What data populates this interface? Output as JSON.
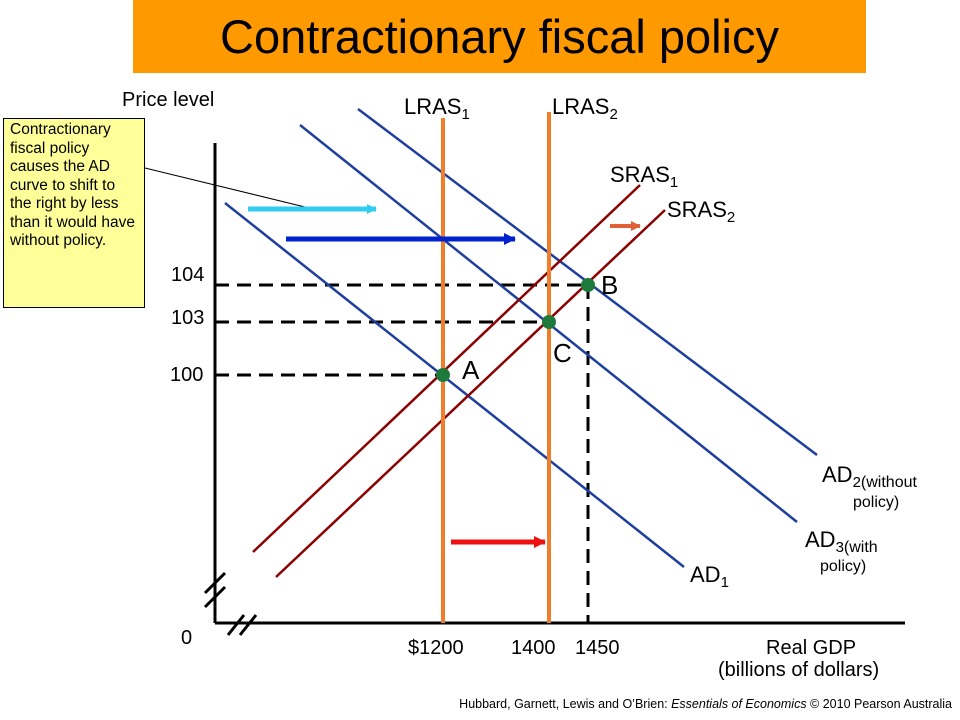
{
  "title": "Contractionary fiscal policy",
  "callout": "Contractionary fiscal policy causes the AD curve to shift to the right by less than it would have without policy.",
  "axes": {
    "y_label": "Price level",
    "x_label": "Real GDP",
    "x_unit": "(billions of dollars)",
    "origin": "0",
    "y_ticks": [
      "104",
      "103",
      "100"
    ],
    "x_ticks": [
      "$1200",
      "1400",
      "1450"
    ]
  },
  "curves": {
    "lras1": {
      "main": "LRAS",
      "sub": "1"
    },
    "lras2": {
      "main": "LRAS",
      "sub": "2"
    },
    "sras1": {
      "main": "SRAS",
      "sub": "1"
    },
    "sras2": {
      "main": "SRAS",
      "sub": "2"
    },
    "ad1": {
      "main": "AD",
      "sub": "1"
    },
    "ad2": {
      "main": "AD",
      "sub": "2",
      "note1": "(without",
      "note2": "policy)"
    },
    "ad3": {
      "main": "AD",
      "sub": "3",
      "note1": "(with",
      "note2": "policy)"
    }
  },
  "points": {
    "a": "A",
    "b": "B",
    "c": "C"
  },
  "credit": {
    "authors": "Hubbard, Garnett, Lewis and O’Brien: ",
    "book": "Essentials of Economics",
    "rest": " © 2010 Pearson Australia"
  },
  "colors": {
    "banner": "#ff9900",
    "callout_bg": "#ffff99",
    "lras": "#f07d2a",
    "sras": "#8b0000",
    "ad": "#1f3f9f",
    "point": "#1e7a3a",
    "arrow_light_blue": "#33ccee",
    "arrow_dark_blue": "#0022cc",
    "arrow_red": "#ee1111",
    "arrow_orange": "#e0603a"
  }
}
